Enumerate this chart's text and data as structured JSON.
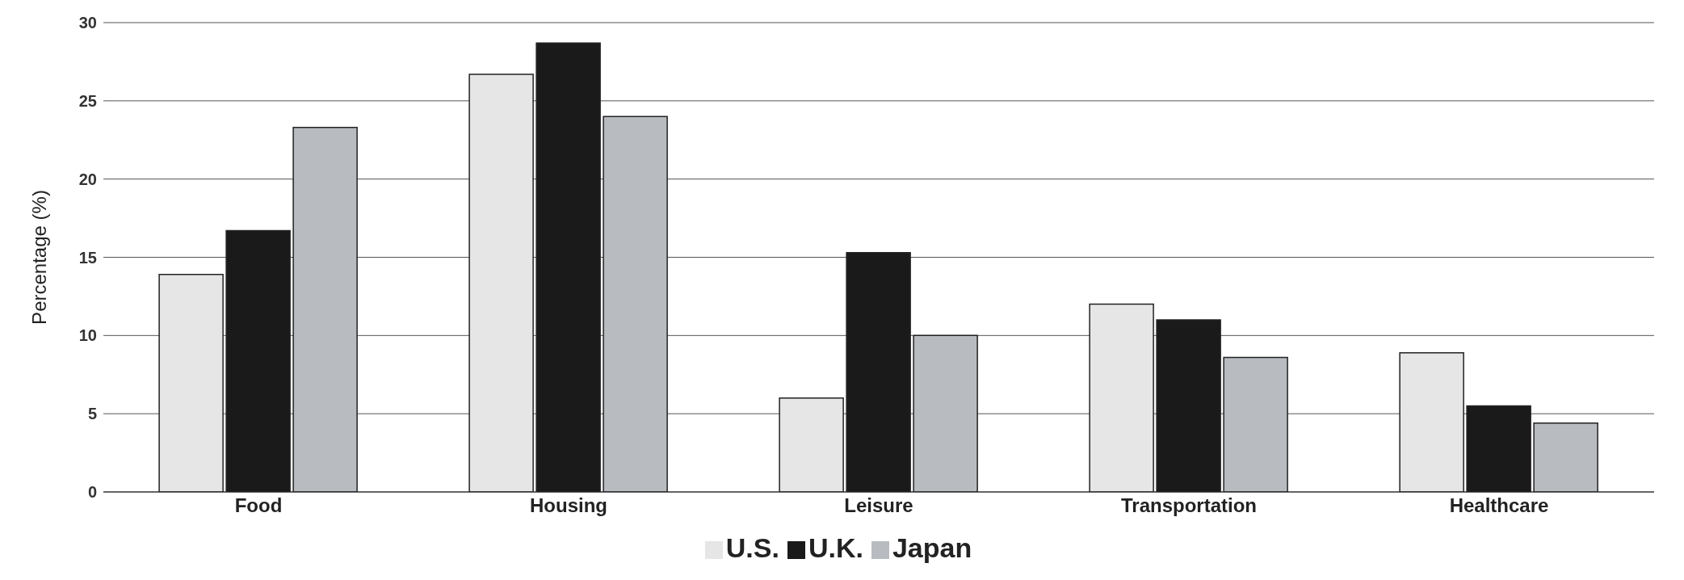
{
  "chart_data": {
    "type": "bar",
    "ylabel": "Percentage (%)",
    "categories": [
      "Food",
      "Housing",
      "Leisure",
      "Transportation",
      "Healthcare"
    ],
    "series": [
      {
        "name": "U.S.",
        "color": "#e6e6e6",
        "values": [
          13.9,
          26.7,
          6,
          12,
          8.9
        ]
      },
      {
        "name": "U.K.",
        "color": "#1a1a1a",
        "values": [
          16.7,
          28.7,
          15.3,
          11,
          5.5
        ]
      },
      {
        "name": "Japan",
        "color": "#b8bcc0",
        "values": [
          23.3,
          24,
          10,
          8.6,
          4.4
        ]
      }
    ],
    "ylim": [
      0,
      30
    ],
    "yticks": [
      0,
      5,
      10,
      15,
      20,
      25,
      30
    ],
    "grid": "y",
    "legend": "bottom"
  }
}
